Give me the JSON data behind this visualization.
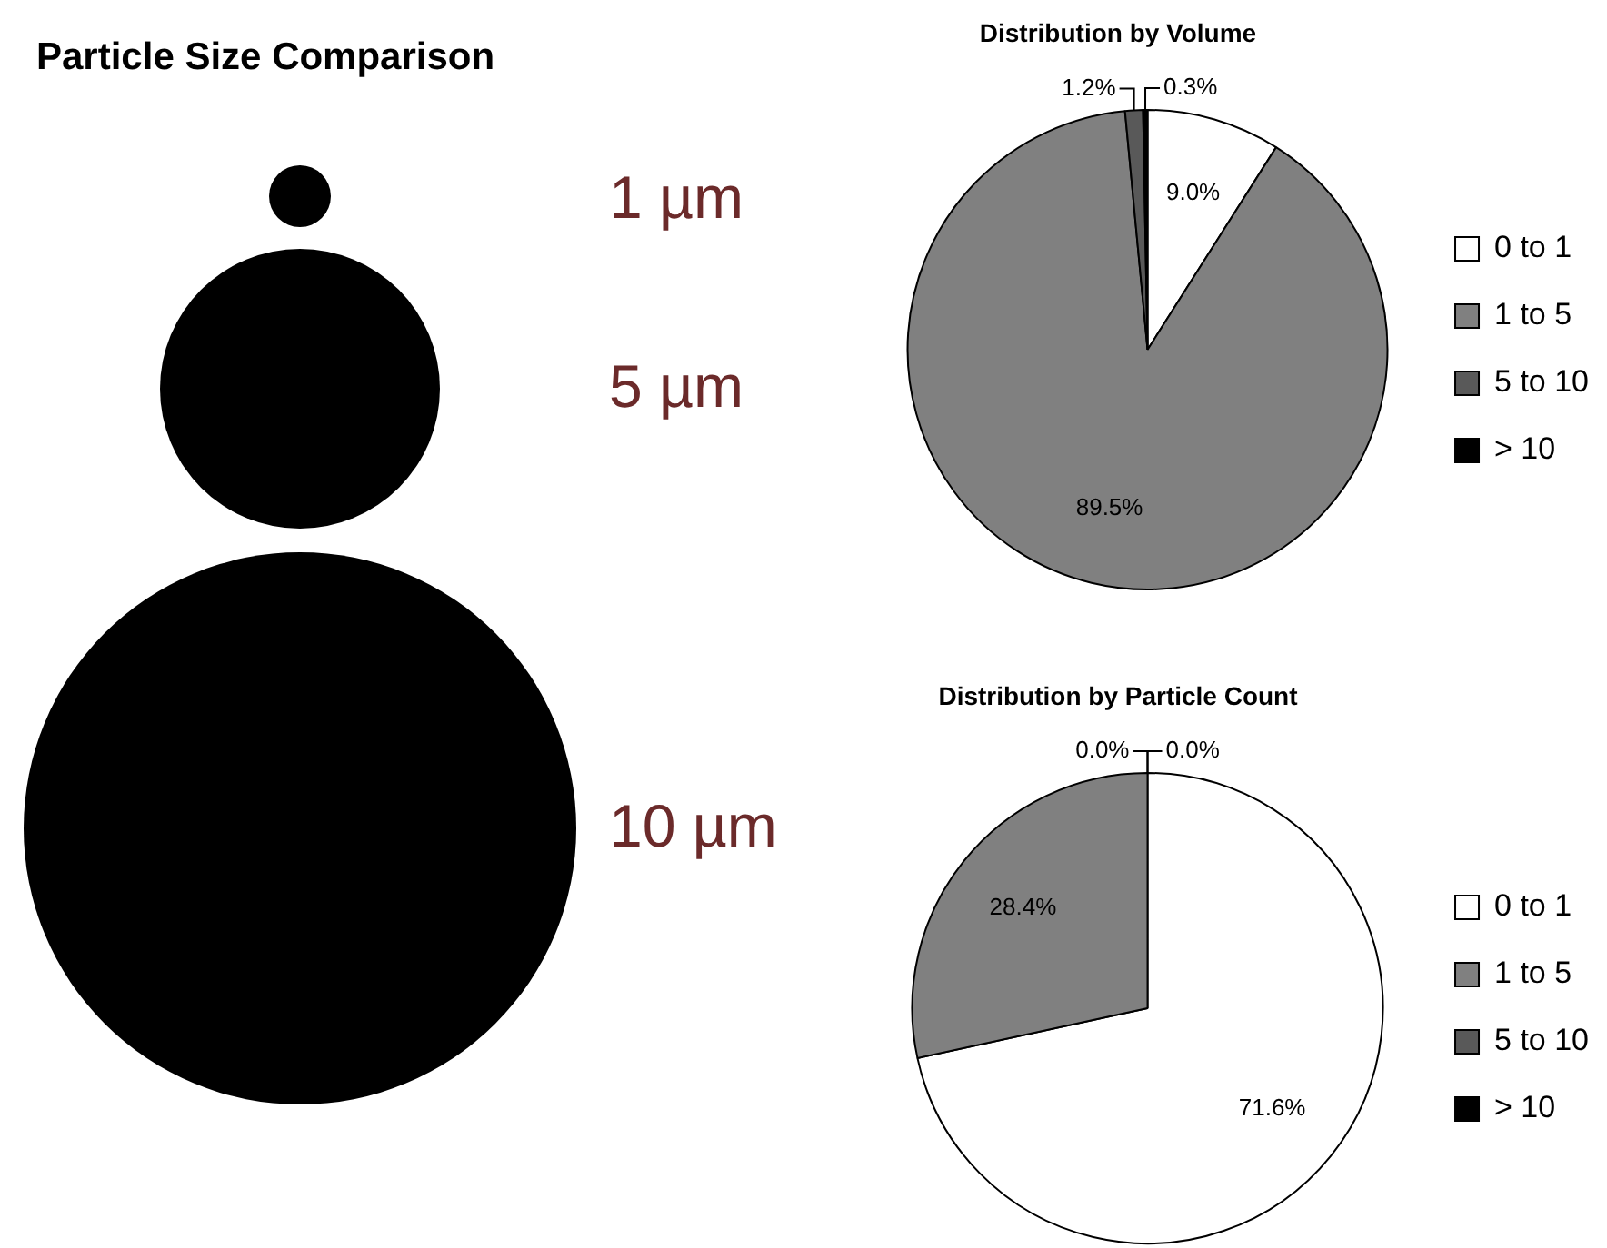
{
  "chart_data": [
    {
      "type": "other",
      "title": "Particle Size Comparison",
      "annotations": [
        "1 µm",
        "5 µm",
        "10 µm"
      ]
    },
    {
      "type": "pie",
      "title": "Distribution by Volume",
      "categories": [
        "0 to 1",
        "1 to 5",
        "5 to 10",
        "> 10"
      ],
      "values": [
        9.0,
        89.5,
        1.2,
        0.3
      ],
      "colors": [
        "#ffffff",
        "#808080",
        "#595959",
        "#000000"
      ],
      "value_labels": [
        "9.0%",
        "89.5%",
        "1.2%",
        "0.3%"
      ],
      "legend": "right"
    },
    {
      "type": "pie",
      "title": "Distribution by Particle Count",
      "categories": [
        "0 to 1",
        "1 to 5",
        "5 to 10",
        "> 10"
      ],
      "values": [
        71.6,
        28.4,
        0.0,
        0.0
      ],
      "colors": [
        "#ffffff",
        "#808080",
        "#595959",
        "#000000"
      ],
      "value_labels": [
        "71.6%",
        "28.4%",
        "0.0%",
        "0.0%"
      ],
      "legend": "right"
    }
  ]
}
